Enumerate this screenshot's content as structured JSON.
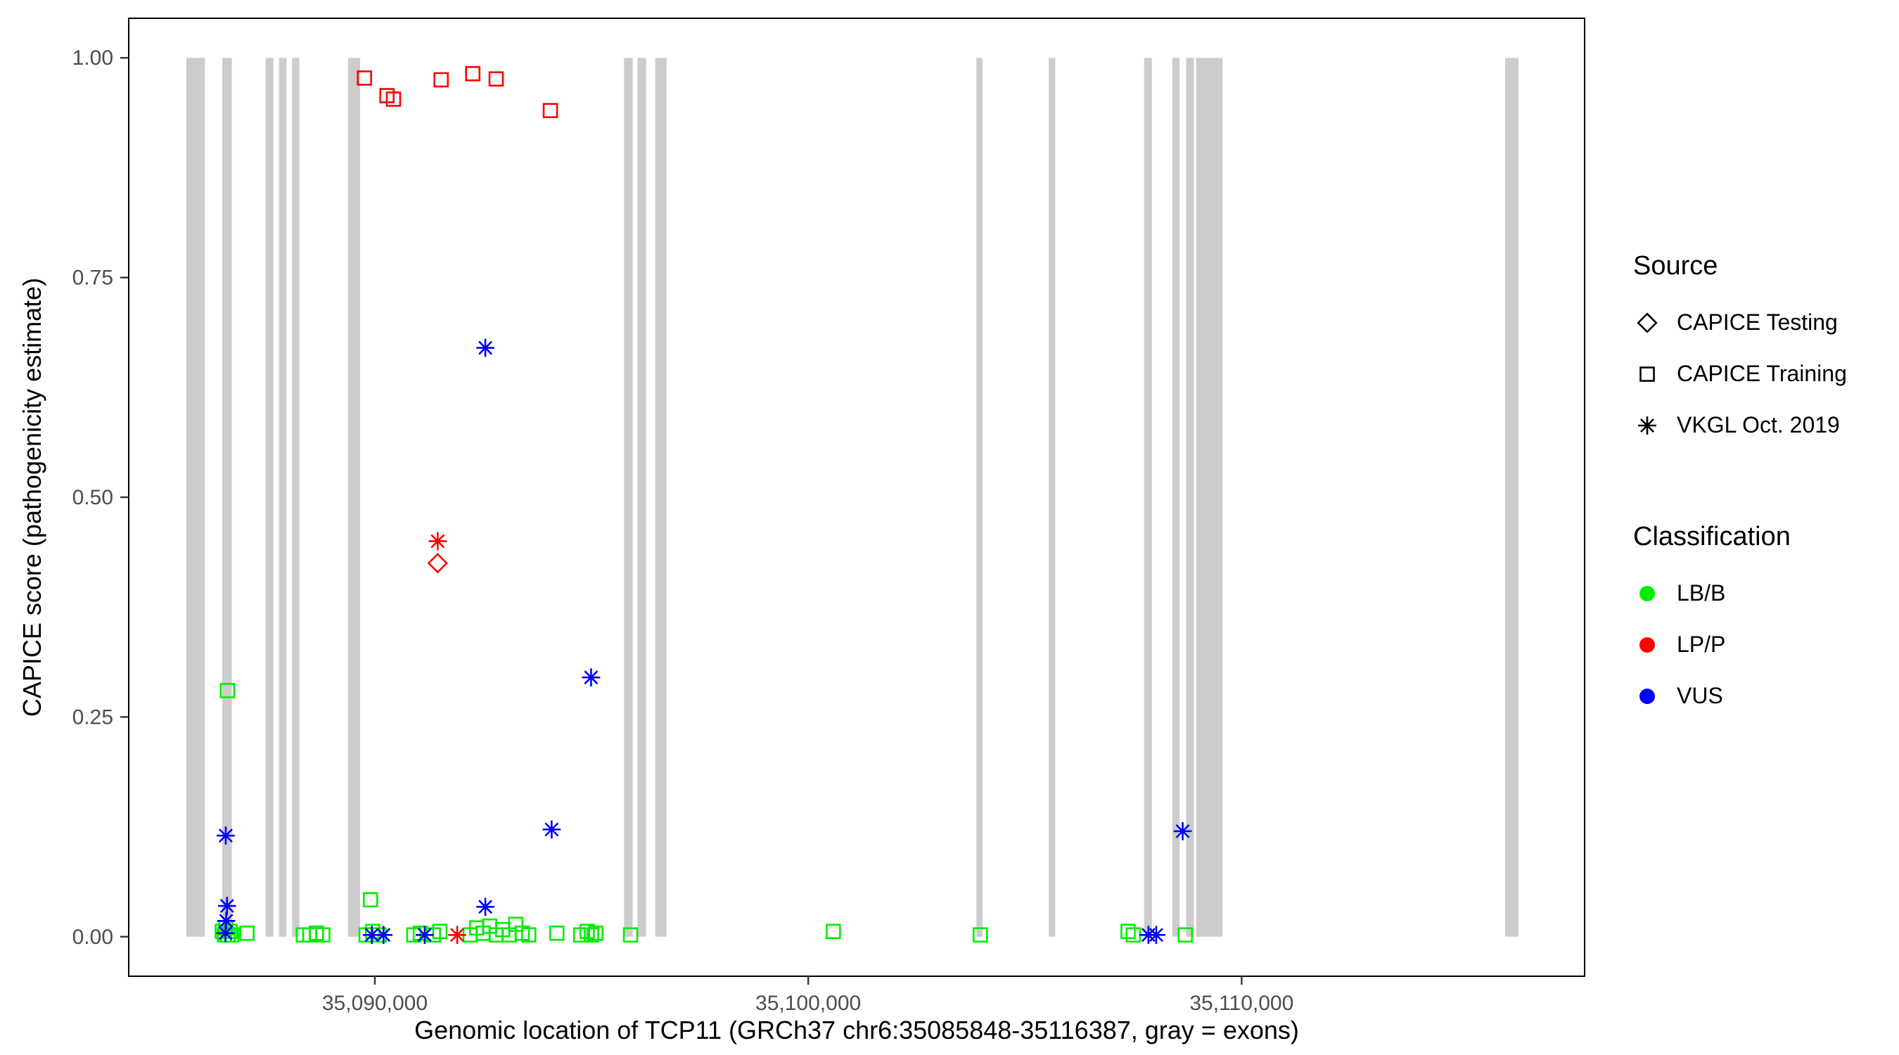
{
  "figure": {
    "background": "#ffffff",
    "panel_border_color": "#000000",
    "tick_label_color": "#4d4d4d"
  },
  "chart_data": {
    "type": "scatter",
    "title": "",
    "xlabel": "Genomic location of TCP11 (GRCh37 chr6:35085848-35116387, gray = exons)",
    "ylabel": "CAPICE score (pathogenicity estimate)",
    "xlim": [
      35084321,
      35117914
    ],
    "ylim": [
      -0.045,
      1.045
    ],
    "grid": false,
    "legend_position": "right",
    "x_ticks": [
      {
        "value": 35090000,
        "label": "35,090,000"
      },
      {
        "value": 35100000,
        "label": "35,100,000"
      },
      {
        "value": 35110000,
        "label": "35,110,000"
      }
    ],
    "y_ticks": [
      {
        "value": 0.0,
        "label": "0.00"
      },
      {
        "value": 0.25,
        "label": "0.25"
      },
      {
        "value": 0.5,
        "label": "0.50"
      },
      {
        "value": 0.75,
        "label": "0.75"
      },
      {
        "value": 1.0,
        "label": "1.00"
      }
    ],
    "exon_color": "#cccccc",
    "exon_y_range": [
      0.0,
      1.0
    ],
    "exons": [
      [
        35085650,
        35086080
      ],
      [
        35086480,
        35086700
      ],
      [
        35087480,
        35087660
      ],
      [
        35087790,
        35087960
      ],
      [
        35088090,
        35088260
      ],
      [
        35089380,
        35089660
      ],
      [
        35095750,
        35095950
      ],
      [
        35096060,
        35096260
      ],
      [
        35096470,
        35096730
      ],
      [
        35103880,
        35104020
      ],
      [
        35105550,
        35105700
      ],
      [
        35107750,
        35107930
      ],
      [
        35108400,
        35108570
      ],
      [
        35108720,
        35108900
      ],
      [
        35108950,
        35109560
      ],
      [
        35116080,
        35116387
      ]
    ],
    "series": [
      {
        "name": "CAPICE Testing / LP/P",
        "source": "CAPICE Testing",
        "classification": "LP/P",
        "shape": "diamond",
        "color": "#ff0000",
        "points": [
          [
            35091450,
            0.425
          ]
        ]
      },
      {
        "name": "CAPICE Training / LP/P",
        "source": "CAPICE Training",
        "classification": "LP/P",
        "shape": "square",
        "color": "#ff0000",
        "points": [
          [
            35089760,
            0.977
          ],
          [
            35090280,
            0.957
          ],
          [
            35090430,
            0.953
          ],
          [
            35091530,
            0.975
          ],
          [
            35092260,
            0.982
          ],
          [
            35092800,
            0.976
          ],
          [
            35094050,
            0.94
          ]
        ]
      },
      {
        "name": "CAPICE Training / LB/B",
        "source": "CAPICE Training",
        "classification": "LB/B",
        "shape": "square",
        "color": "#00ee00",
        "points": [
          [
            35086600,
            0.28
          ],
          [
            35089900,
            0.042
          ],
          [
            35086480,
            0.006
          ],
          [
            35086530,
            0.002
          ],
          [
            35086560,
            0.01
          ],
          [
            35086610,
            0.002
          ],
          [
            35086660,
            0.006
          ],
          [
            35086700,
            0.002
          ],
          [
            35087050,
            0.004
          ],
          [
            35088350,
            0.002
          ],
          [
            35088500,
            0.002
          ],
          [
            35088650,
            0.004
          ],
          [
            35088800,
            0.002
          ],
          [
            35089800,
            0.002
          ],
          [
            35089950,
            0.006
          ],
          [
            35090100,
            0.002
          ],
          [
            35090900,
            0.002
          ],
          [
            35091050,
            0.004
          ],
          [
            35091350,
            0.002
          ],
          [
            35091500,
            0.006
          ],
          [
            35092200,
            0.002
          ],
          [
            35092350,
            0.01
          ],
          [
            35092500,
            0.004
          ],
          [
            35092650,
            0.012
          ],
          [
            35092800,
            0.002
          ],
          [
            35092950,
            0.008
          ],
          [
            35093100,
            0.002
          ],
          [
            35093250,
            0.014
          ],
          [
            35093400,
            0.004
          ],
          [
            35093550,
            0.002
          ],
          [
            35094200,
            0.004
          ],
          [
            35094750,
            0.002
          ],
          [
            35094900,
            0.006
          ],
          [
            35095000,
            0.002
          ],
          [
            35095100,
            0.004
          ],
          [
            35095900,
            0.002
          ],
          [
            35100580,
            0.006
          ],
          [
            35103970,
            0.002
          ],
          [
            35107380,
            0.006
          ],
          [
            35107500,
            0.002
          ],
          [
            35108700,
            0.002
          ]
        ]
      },
      {
        "name": "VKGL Oct. 2019 / LP/P",
        "source": "VKGL Oct. 2019",
        "classification": "LP/P",
        "shape": "asterisk",
        "color": "#ff0000",
        "points": [
          [
            35091450,
            0.45
          ],
          [
            35091900,
            0.002
          ]
        ]
      },
      {
        "name": "VKGL Oct. 2019 / VUS",
        "source": "VKGL Oct. 2019",
        "classification": "VUS",
        "shape": "asterisk",
        "color": "#0000ff",
        "points": [
          [
            35092550,
            0.67
          ],
          [
            35094990,
            0.295
          ],
          [
            35094080,
            0.122
          ],
          [
            35108640,
            0.12
          ],
          [
            35086560,
            0.115
          ],
          [
            35086590,
            0.035
          ],
          [
            35086570,
            0.018
          ],
          [
            35086555,
            0.004
          ],
          [
            35089930,
            0.002
          ],
          [
            35090200,
            0.002
          ],
          [
            35091150,
            0.002
          ],
          [
            35092550,
            0.034
          ],
          [
            35107850,
            0.002
          ],
          [
            35108030,
            0.002
          ]
        ]
      }
    ]
  },
  "legend": {
    "source": {
      "title": "Source",
      "items": [
        {
          "label": "CAPICE Testing",
          "shape": "diamond"
        },
        {
          "label": "CAPICE Training",
          "shape": "square"
        },
        {
          "label": "VKGL Oct. 2019",
          "shape": "asterisk"
        }
      ]
    },
    "classification": {
      "title": "Classification",
      "items": [
        {
          "label": "LB/B",
          "color": "#00ee00"
        },
        {
          "label": "LP/P",
          "color": "#ff0000"
        },
        {
          "label": "VUS",
          "color": "#0000ff"
        }
      ]
    }
  }
}
